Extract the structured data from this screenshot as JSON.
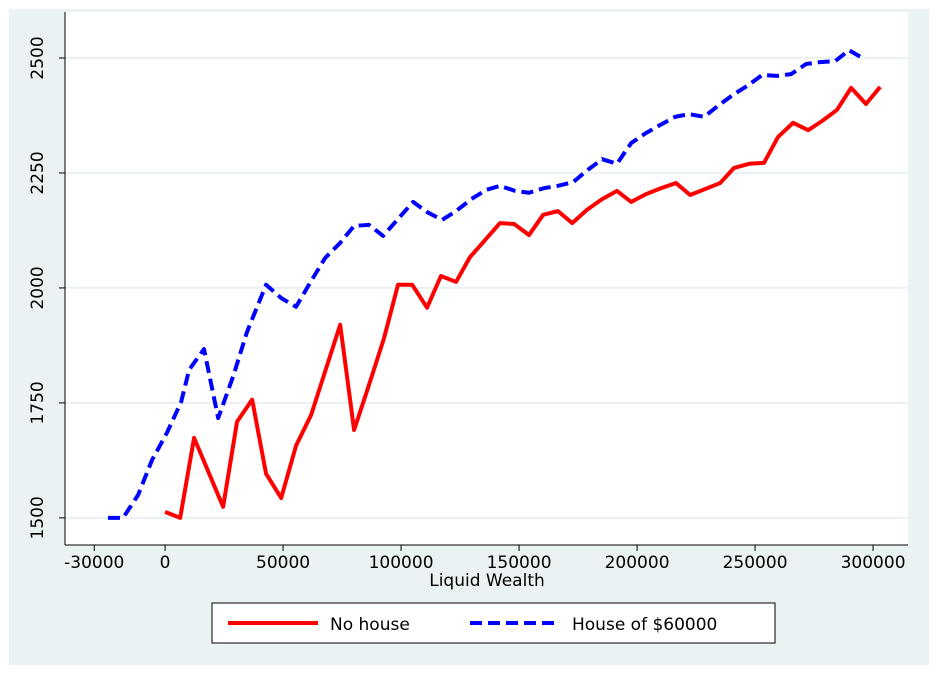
{
  "chart_data": {
    "type": "line",
    "x_label": "Liquid Wealth",
    "xlim": [
      -42400,
      314800
    ],
    "xticks": [
      -30000,
      0,
      50000,
      100000,
      150000,
      200000,
      250000,
      300000
    ],
    "ylim": [
      1441,
      2600
    ],
    "yticks": [
      1500,
      1750,
      2000,
      2250,
      2500
    ],
    "grid": true,
    "legend": "bottom",
    "series": [
      {
        "name": "No house",
        "color": "#ff0000",
        "dash": false,
        "x": [
          0,
          6400,
          12300,
          24600,
          30500,
          36900,
          42800,
          49200,
          55500,
          61900,
          74200,
          80100,
          86400,
          92800,
          98700,
          104700,
          111000,
          116900,
          123300,
          129200,
          135600,
          141900,
          147900,
          154200,
          160200,
          166500,
          172500,
          178800,
          185200,
          191500,
          197500,
          203800,
          210200,
          216500,
          222500,
          228800,
          235200,
          241100,
          247500,
          253800,
          259700,
          266100,
          272500,
          278400,
          284700,
          290700,
          297000,
          303000
        ],
        "values": [
          1513,
          1500,
          1674,
          1524,
          1709,
          1757,
          1596,
          1543,
          1657,
          1724,
          1920,
          1691,
          1789,
          1891,
          2007,
          2007,
          1957,
          2026,
          2013,
          2067,
          2104,
          2141,
          2139,
          2115,
          2159,
          2167,
          2141,
          2170,
          2193,
          2211,
          2187,
          2204,
          2217,
          2228,
          2202,
          2215,
          2228,
          2261,
          2270,
          2272,
          2328,
          2359,
          2343,
          2363,
          2387,
          2435,
          2400,
          2437
        ]
      },
      {
        "name": "House of $60000",
        "color": "#0000ff",
        "dash": true,
        "x": [
          -24200,
          -17800,
          -11400,
          -5500,
          800,
          6800,
          10200,
          16500,
          22500,
          28800,
          34700,
          42800,
          49200,
          55500,
          61900,
          67800,
          74200,
          80100,
          86400,
          92400,
          98700,
          105100,
          111000,
          117400,
          123300,
          129700,
          136000,
          141900,
          148300,
          154200,
          160600,
          166500,
          172900,
          179200,
          185200,
          191500,
          197500,
          203800,
          209700,
          216100,
          222000,
          228400,
          234300,
          240700,
          246600,
          253000,
          259300,
          265300,
          271600,
          277500,
          283900,
          289800,
          296200
        ],
        "values": [
          1500,
          1500,
          1550,
          1626,
          1685,
          1752,
          1822,
          1867,
          1717,
          1807,
          1904,
          2007,
          1978,
          1959,
          2015,
          2065,
          2098,
          2135,
          2137,
          2113,
          2150,
          2187,
          2165,
          2148,
          2167,
          2193,
          2213,
          2222,
          2211,
          2207,
          2217,
          2222,
          2230,
          2257,
          2280,
          2270,
          2315,
          2337,
          2354,
          2372,
          2378,
          2372,
          2396,
          2420,
          2439,
          2463,
          2461,
          2465,
          2487,
          2491,
          2493,
          2517,
          2498
        ]
      }
    ]
  }
}
